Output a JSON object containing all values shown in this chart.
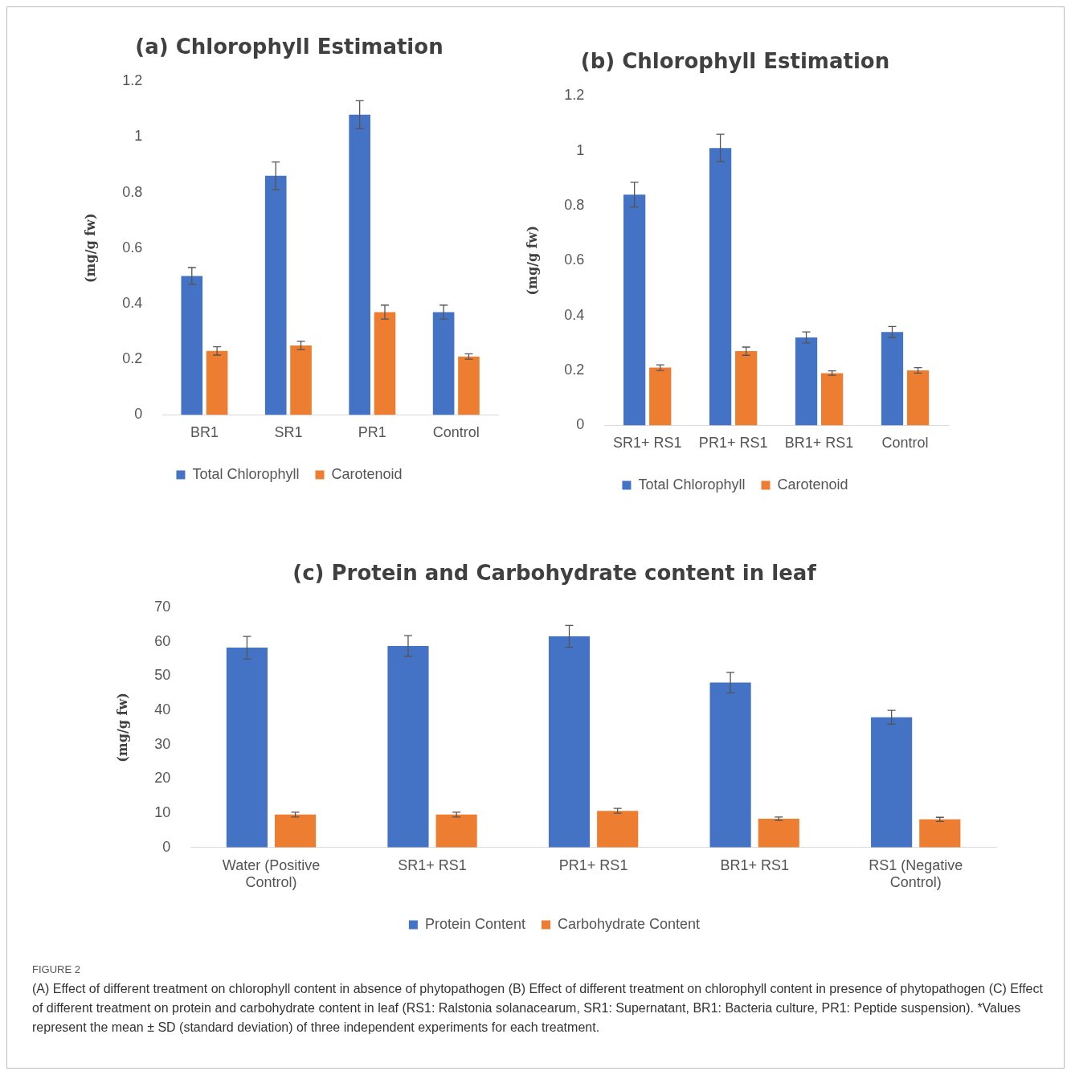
{
  "chart_data": [
    {
      "type": "bar",
      "title": "(a) Chlorophyll Estimation",
      "ylabel": "(mg/g fw)",
      "categories": [
        "BR1",
        "SR1",
        "PR1",
        "Control"
      ],
      "ylim": [
        0,
        1.2
      ],
      "yticks": [
        0,
        0.2,
        0.4,
        0.6,
        0.8,
        1,
        1.2
      ],
      "grid": false,
      "legend": "bottom",
      "series": [
        {
          "name": "Total Chlorophyll",
          "color": "#4472c4",
          "values": [
            0.5,
            0.86,
            1.08,
            0.37
          ],
          "errors": [
            0.03,
            0.05,
            0.05,
            0.025
          ]
        },
        {
          "name": "Carotenoid",
          "color": "#ed7d31",
          "values": [
            0.23,
            0.25,
            0.37,
            0.21
          ],
          "errors": [
            0.015,
            0.015,
            0.025,
            0.01
          ]
        }
      ]
    },
    {
      "type": "bar",
      "title": "(b) Chlorophyll Estimation",
      "ylabel": "(mg/g fw)",
      "categories": [
        "SR1+ RS1",
        "PR1+ RS1",
        "BR1+ RS1",
        "Control"
      ],
      "ylim": [
        0,
        1.2
      ],
      "yticks": [
        0,
        0.2,
        0.4,
        0.6,
        0.8,
        1,
        1.2
      ],
      "grid": false,
      "legend": "bottom",
      "series": [
        {
          "name": "Total Chlorophyll",
          "color": "#4472c4",
          "values": [
            0.84,
            1.01,
            0.32,
            0.34
          ],
          "errors": [
            0.045,
            0.05,
            0.02,
            0.02
          ]
        },
        {
          "name": "Carotenoid",
          "color": "#ed7d31",
          "values": [
            0.21,
            0.27,
            0.19,
            0.2
          ],
          "errors": [
            0.01,
            0.015,
            0.008,
            0.01
          ]
        }
      ]
    },
    {
      "type": "bar",
      "title": "(c) Protein and Carbohydrate content in leaf",
      "ylabel": "(mg/g fw)",
      "categories": [
        "Water (Positive Control)",
        "SR1+ RS1",
        "PR1+ RS1",
        "BR1+ RS1",
        "RS1 (Negative Control)"
      ],
      "ylim": [
        0,
        70
      ],
      "yticks": [
        0,
        10,
        20,
        30,
        40,
        50,
        60,
        70
      ],
      "grid": false,
      "legend": "bottom",
      "annotations": [
        "FIGURE 2",
        "(A) Effect of different treatment on chlorophyll content in absence of phytopathogen (B) Effect of different treatment on chlorophyll content in presence of phytopathogen (C) Effect of different treatment on protein and carbohydrate content in leaf (RS1: Ralstonia solanacearum, SR1: Supernatant, BR1: Bacteria culture, PR1: Peptide suspension). *Values represent the mean ± SD (standard deviation) of three independent experiments for each treatment."
      ],
      "series": [
        {
          "name": "Protein Content",
          "color": "#4472c4",
          "values": [
            58.3,
            58.8,
            61.6,
            48.1,
            38
          ],
          "errors": [
            3.3,
            3,
            3.2,
            3,
            2
          ]
        },
        {
          "name": "Carbohydrate Content",
          "color": "#ed7d31",
          "values": [
            9.6,
            9.6,
            10.7,
            8.4,
            8.2
          ],
          "errors": [
            0.7,
            0.7,
            0.7,
            0.5,
            0.6
          ]
        }
      ]
    }
  ]
}
